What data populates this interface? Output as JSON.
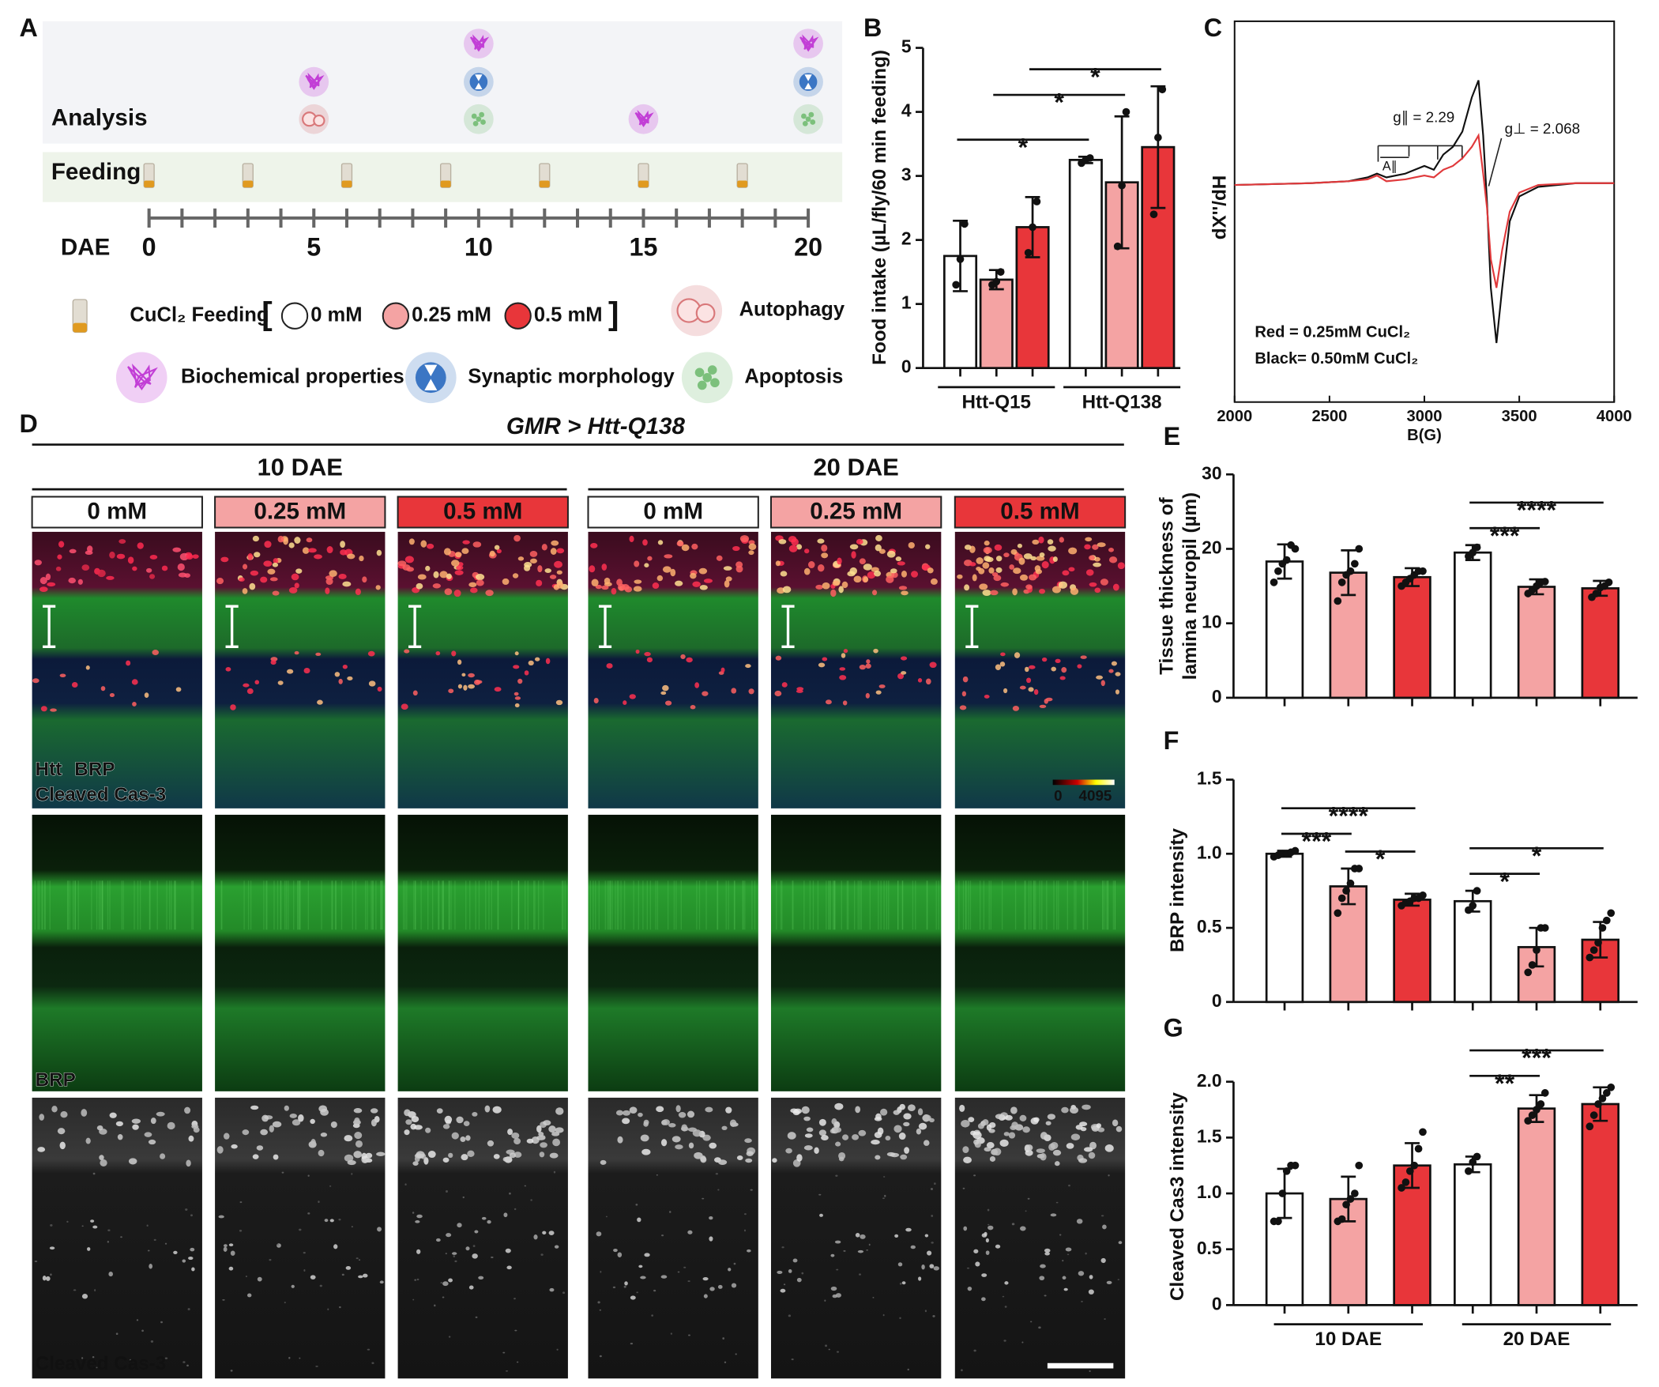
{
  "panel_labels": [
    "A",
    "B",
    "C",
    "D",
    "E",
    "F",
    "G"
  ],
  "schematic": {
    "rows": {
      "analysis": "Analysis",
      "feeding": "Feeding"
    },
    "axis_label": "DAE",
    "xlim": [
      0,
      20
    ],
    "xticks": [
      0,
      5,
      10,
      15,
      20
    ],
    "minor_ticks": [
      0,
      1,
      2,
      3,
      4,
      5,
      6,
      7,
      8,
      9,
      10,
      11,
      12,
      13,
      14,
      15,
      16,
      17,
      18,
      19,
      20
    ],
    "feeding_days": [
      0,
      3,
      6,
      9,
      12,
      15,
      18
    ],
    "analysis": [
      {
        "day": 5,
        "assays": [
          0,
          1
        ]
      },
      {
        "day": 10,
        "assays": [
          3,
          2,
          1
        ]
      },
      {
        "day": 15,
        "assays": [
          1
        ]
      },
      {
        "day": 20,
        "assays": [
          3,
          2,
          1
        ]
      }
    ],
    "assays": [
      {
        "label": "Autophagy",
        "color": "#d9787a"
      },
      {
        "label": "Biochemical properties",
        "color": "#c23fd6"
      },
      {
        "label": "Synaptic morphology",
        "color": "#3b76c4"
      },
      {
        "label": "Apoptosis",
        "color": "#7cc07c"
      }
    ],
    "feeding_label": "CuCl₂ Feeding",
    "bracket_open": "[",
    "bracket_close": "]",
    "doses": [
      {
        "label": "0 mM",
        "color": "#ffffff"
      },
      {
        "label": "0.25 mM",
        "color": "#f4a3a3"
      },
      {
        "label": "0.5 mM",
        "color": "#e8363a"
      }
    ]
  },
  "micrographs": {
    "title": "GMR > Htt-Q138",
    "groups": [
      "10 DAE",
      "20 DAE"
    ],
    "columns": [
      "0 mM",
      "0.25 mM",
      "0.5 mM",
      "0 mM",
      "0.25 mM",
      "0.5 mM"
    ],
    "column_colors": [
      "#ffffff",
      "#f4a3a3",
      "#e8363a",
      "#ffffff",
      "#f4a3a3",
      "#e8363a"
    ],
    "row_labels": [
      [
        {
          "text": "Htt",
          "color": "#ff2a2a"
        },
        {
          "text": "BRP",
          "color": "#33dd33"
        },
        {
          "text": "Cleaved Cas-3",
          "color": "#2233ff"
        }
      ],
      [
        {
          "text": "BRP",
          "color": "#33dd33"
        }
      ],
      [
        {
          "text": "Cleaved Cas-3",
          "color": "#ffffff"
        }
      ]
    ],
    "colorbar": [
      0,
      4095
    ]
  },
  "chart_data": [
    {
      "type": "bar",
      "ylabel": "Food intake (µL/fly/60 min feeding)",
      "categories": [
        "Htt-Q15",
        "Htt-Q138"
      ],
      "ylim": [
        0,
        5
      ],
      "yticks": [
        0,
        1,
        2,
        3,
        4,
        5
      ],
      "series": [
        {
          "color": "#ffffff",
          "values": [
            1.75,
            3.25
          ],
          "errors": [
            0.55,
            0.05
          ],
          "points": [
            [
              1.3,
              1.7,
              2.25
            ],
            [
              3.2,
              3.25,
              3.28
            ]
          ]
        },
        {
          "color": "#f4a3a3",
          "values": [
            1.38,
            2.9
          ],
          "errors": [
            0.15,
            1.03
          ],
          "points": [
            [
              1.3,
              1.35,
              1.5
            ],
            [
              1.9,
              2.85,
              4.0
            ]
          ]
        },
        {
          "color": "#e8363a",
          "values": [
            2.2,
            3.45
          ],
          "errors": [
            0.47,
            0.95
          ],
          "points": [
            [
              1.8,
              2.2,
              2.6
            ],
            [
              2.4,
              3.6,
              4.35
            ]
          ]
        }
      ],
      "brackets": [
        {
          "label": "*",
          "from": [
            0,
            0
          ],
          "to": [
            1,
            0
          ]
        },
        {
          "label": "*",
          "from": [
            0,
            1
          ],
          "to": [
            1,
            1
          ]
        },
        {
          "label": "*",
          "from": [
            0,
            2
          ],
          "to": [
            1,
            2
          ]
        }
      ]
    },
    {
      "type": "line",
      "ylabel": "dX''/dH",
      "xlabel": "B(G)",
      "xlim": [
        2000,
        4000
      ],
      "xticks": [
        2000,
        2500,
        3000,
        3500,
        4000
      ],
      "ylim": [
        -1,
        1
      ],
      "x": [
        2000,
        2400,
        2600,
        2700,
        2750,
        2800,
        2900,
        2950,
        3000,
        3050,
        3100,
        3150,
        3200,
        3250,
        3285,
        3310,
        3330,
        3350,
        3380,
        3410,
        3450,
        3500,
        3600,
        3800,
        4000
      ],
      "series": [
        {
          "name": "Red = 0.25mM CuCl₂",
          "color": "#e0393b",
          "values": [
            0.14,
            0.15,
            0.16,
            0.17,
            0.19,
            0.16,
            0.17,
            0.18,
            0.19,
            0.18,
            0.22,
            0.24,
            0.28,
            0.34,
            0.4,
            0.2,
            0.02,
            -0.25,
            -0.4,
            -0.2,
            0.0,
            0.1,
            0.14,
            0.15,
            0.15
          ]
        },
        {
          "name": "Black= 0.50mM CuCl₂",
          "color": "#111111",
          "values": [
            0.14,
            0.15,
            0.16,
            0.18,
            0.2,
            0.18,
            0.2,
            0.22,
            0.24,
            0.22,
            0.3,
            0.34,
            0.42,
            0.6,
            0.69,
            0.4,
            0.05,
            -0.4,
            -0.69,
            -0.4,
            -0.05,
            0.08,
            0.13,
            0.15,
            0.15
          ]
        }
      ],
      "annotations": [
        "g∥ = 2.29",
        "g⊥ = 2.068",
        "A∥"
      ]
    },
    {
      "type": "bar",
      "ylabel": [
        "Tissue thickness of",
        "lamina neuropil (µm)"
      ],
      "categories": [
        null,
        null
      ],
      "ylim": [
        0,
        30
      ],
      "yticks": [
        0,
        10,
        20,
        30
      ],
      "series": [
        {
          "color": "#ffffff",
          "values": [
            18.3,
            19.5
          ],
          "errors": [
            2.3,
            1.0
          ],
          "points": [
            [
              15.5,
              17,
              18,
              18.5,
              20.5,
              20
            ],
            [
              19,
              19.5,
              20.2
            ]
          ]
        },
        {
          "color": "#f4a3a3",
          "values": [
            16.8,
            14.9
          ],
          "errors": [
            3.0,
            1.0
          ],
          "points": [
            [
              13,
              15.5,
              16.5,
              17,
              18,
              20
            ],
            [
              14,
              14.5,
              15,
              15.5,
              15.6
            ]
          ]
        },
        {
          "color": "#e8363a",
          "values": [
            16.2,
            14.7
          ],
          "errors": [
            1.2,
            1.0
          ],
          "points": [
            [
              15,
              15.5,
              16,
              16.5,
              17,
              17
            ],
            [
              13.5,
              14,
              14.8,
              15,
              15.5
            ]
          ]
        }
      ],
      "brackets": [
        {
          "label": "***",
          "from": [
            1,
            0
          ],
          "to": [
            1,
            1
          ]
        },
        {
          "label": "****",
          "from": [
            1,
            0
          ],
          "to": [
            1,
            2
          ]
        }
      ]
    },
    {
      "type": "bar",
      "ylabel": "BRP intensity",
      "categories": [
        null,
        null
      ],
      "ylim": [
        0,
        1.5
      ],
      "yticks": [
        0,
        0.5,
        {
          "value": 1,
          "label": "1.0"
        },
        1.5
      ],
      "series": [
        {
          "color": "#ffffff",
          "values": [
            1.0,
            0.68
          ],
          "errors": [
            0.02,
            0.07
          ],
          "points": [
            [
              0.98,
              0.99,
              1,
              1,
              1.01,
              1.02
            ],
            [
              0.62,
              0.65,
              0.75
            ]
          ]
        },
        {
          "color": "#f4a3a3",
          "values": [
            0.78,
            0.37
          ],
          "errors": [
            0.12,
            0.13
          ],
          "points": [
            [
              0.6,
              0.7,
              0.75,
              0.8,
              0.9,
              0.9
            ],
            [
              0.2,
              0.25,
              0.35,
              0.5,
              0.5
            ]
          ]
        },
        {
          "color": "#e8363a",
          "values": [
            0.69,
            0.42
          ],
          "errors": [
            0.04,
            0.12
          ],
          "points": [
            [
              0.65,
              0.67,
              0.68,
              0.7,
              0.7,
              0.72
            ],
            [
              0.3,
              0.35,
              0.4,
              0.5,
              0.55,
              0.6
            ]
          ]
        }
      ],
      "brackets": [
        {
          "label": "***",
          "from": [
            0,
            0
          ],
          "to": [
            0,
            1
          ]
        },
        {
          "label": "*",
          "from": [
            0,
            1
          ],
          "to": [
            0,
            2
          ]
        },
        {
          "label": "****",
          "from": [
            0,
            0
          ],
          "to": [
            0,
            2
          ]
        },
        {
          "label": "*",
          "from": [
            1,
            0
          ],
          "to": [
            1,
            1
          ]
        },
        {
          "label": "*",
          "from": [
            1,
            0
          ],
          "to": [
            1,
            2
          ]
        }
      ]
    },
    {
      "type": "bar",
      "ylabel": "Cleaved Cas3 intensity",
      "categories": [
        "10 DAE",
        "20 DAE"
      ],
      "ylim": [
        0,
        2
      ],
      "yticks": [
        0,
        0.5,
        {
          "value": 1,
          "label": "1.0"
        },
        1.5,
        {
          "value": 2,
          "label": "2.0"
        }
      ],
      "series": [
        {
          "color": "#ffffff",
          "values": [
            1.0,
            1.26
          ],
          "errors": [
            0.22,
            0.07
          ],
          "points": [
            [
              0.75,
              0.75,
              1.0,
              1.2,
              1.25,
              1.25
            ],
            [
              1.2,
              1.28,
              1.33
            ]
          ]
        },
        {
          "color": "#f4a3a3",
          "values": [
            0.95,
            1.76
          ],
          "errors": [
            0.2,
            0.12
          ],
          "points": [
            [
              0.75,
              0.77,
              0.9,
              0.95,
              1.0,
              1.25
            ],
            [
              1.65,
              1.7,
              1.75,
              1.8,
              1.9
            ]
          ]
        },
        {
          "color": "#e8363a",
          "values": [
            1.25,
            1.8
          ],
          "errors": [
            0.2,
            0.15
          ],
          "points": [
            [
              1.05,
              1.1,
              1.2,
              1.25,
              1.4,
              1.55
            ],
            [
              1.6,
              1.7,
              1.8,
              1.85,
              1.9,
              1.95
            ]
          ]
        }
      ],
      "brackets": [
        {
          "label": "**",
          "from": [
            1,
            0
          ],
          "to": [
            1,
            1
          ]
        },
        {
          "label": "***",
          "from": [
            1,
            0
          ],
          "to": [
            1,
            2
          ]
        }
      ]
    }
  ]
}
